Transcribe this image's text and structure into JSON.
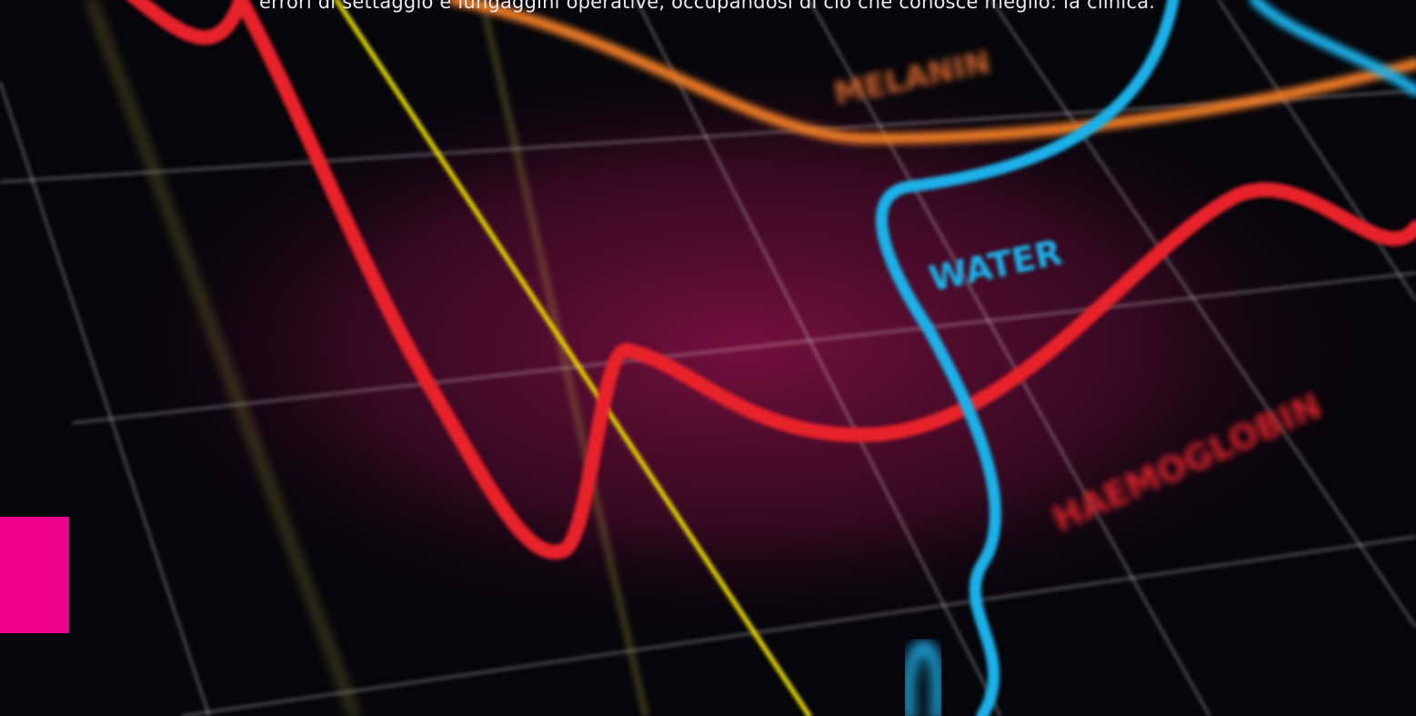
{
  "page": {
    "intro_text": "errori di settaggio e lungaggini operative, occupandosi di ciò che conosce meglio: la clinica.",
    "hero_image": {
      "labels": [
        "MELANIN",
        "WATER",
        "HAEMOGLOBIN"
      ]
    }
  }
}
